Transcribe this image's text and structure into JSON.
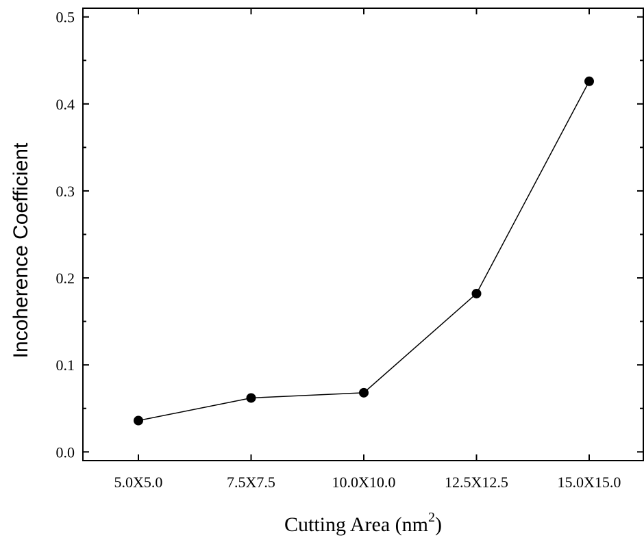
{
  "chart_data": {
    "type": "line",
    "categories": [
      "5.0X5.0",
      "7.5X7.5",
      "10.0X10.0",
      "12.5X12.5",
      "15.0X15.0"
    ],
    "series": [
      {
        "values": [
          0.036,
          0.062,
          0.068,
          0.182,
          0.426
        ]
      }
    ],
    "xlabel": {
      "main": "Cutting Area (nm",
      "superscript": "2",
      "close": ")"
    },
    "ylabel": "Incoherence Coefficient",
    "ylim": [
      -0.01,
      0.51
    ],
    "yticks": [
      "0.0",
      "0.1",
      "0.2",
      "0.3",
      "0.4",
      "0.5"
    ],
    "grid": false,
    "legend": "none",
    "colors": {
      "line": "#000000",
      "marker": "#000000",
      "axes": "#000000"
    }
  }
}
